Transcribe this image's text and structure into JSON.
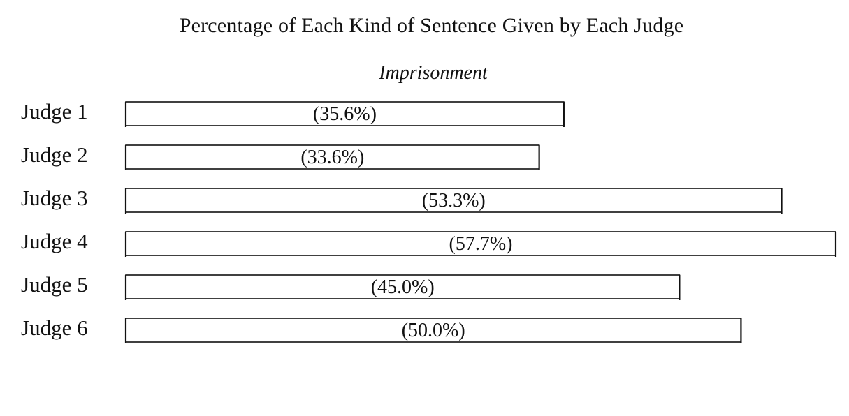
{
  "chart_data": {
    "type": "bar",
    "orientation": "horizontal",
    "title": "Percentage of Each Kind of Sentence Given by Each Judge",
    "subtitle": "Imprisonment",
    "categories": [
      "Judge 1",
      "Judge 2",
      "Judge 3",
      "Judge 4",
      "Judge 5",
      "Judge 6"
    ],
    "values": [
      35.6,
      33.6,
      53.3,
      57.7,
      45.0,
      50.0
    ],
    "value_labels": [
      "(35.6%)",
      "(33.6%)",
      "(53.3%)",
      "(57.7%)",
      "(45.0%)",
      "(50.0%)"
    ],
    "grid": false,
    "legend": "none",
    "bar_fill": "#ffffff",
    "bar_stroke": "#111111"
  }
}
